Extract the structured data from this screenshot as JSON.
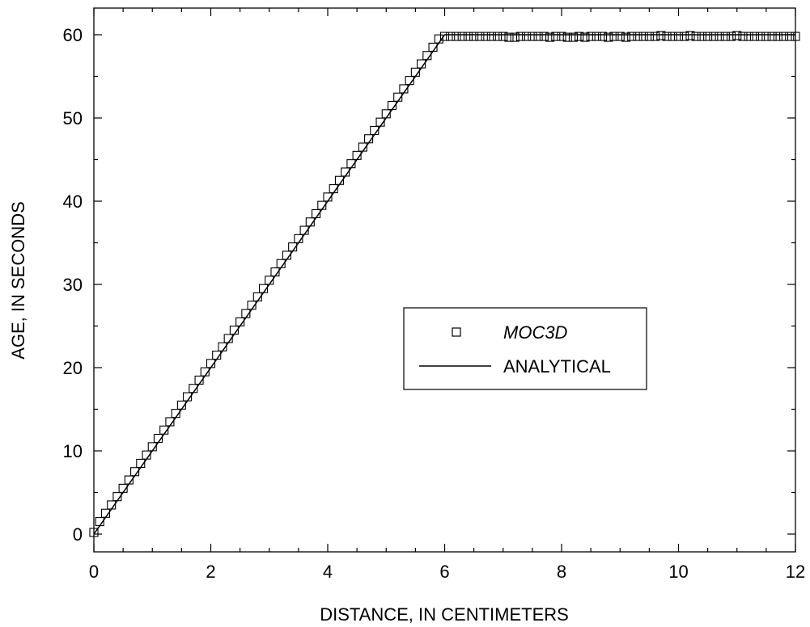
{
  "chart_data": {
    "type": "scatter",
    "xlabel": "DISTANCE, IN CENTIMETERS",
    "ylabel": "AGE, IN SECONDS",
    "xlim": [
      0,
      12
    ],
    "ylim": [
      -2,
      63
    ],
    "x_ticks": [
      0,
      2,
      4,
      6,
      8,
      10,
      12
    ],
    "y_ticks": [
      0,
      10,
      20,
      30,
      40,
      50,
      60
    ],
    "x_minor_step": 0.5,
    "y_minor_step": 5,
    "grid": false,
    "legend_position": "center-right",
    "series": [
      {
        "name": "MOC3D",
        "marker": "open-square",
        "x": [
          0.0,
          0.1,
          0.2,
          0.3,
          0.4,
          0.5,
          0.6,
          0.7,
          0.8,
          0.9,
          1.0,
          1.1,
          1.2,
          1.3,
          1.4,
          1.5,
          1.6,
          1.7,
          1.8,
          1.9,
          2.0,
          2.1,
          2.2,
          2.3,
          2.4,
          2.5,
          2.6,
          2.7,
          2.8,
          2.9,
          3.0,
          3.1,
          3.2,
          3.3,
          3.4,
          3.5,
          3.6,
          3.7,
          3.8,
          3.9,
          4.0,
          4.1,
          4.2,
          4.3,
          4.4,
          4.5,
          4.6,
          4.7,
          4.8,
          4.9,
          5.0,
          5.1,
          5.2,
          5.3,
          5.4,
          5.5,
          5.6,
          5.7,
          5.8,
          5.9,
          6.0,
          6.1,
          6.2,
          6.3,
          6.4,
          6.5,
          6.6,
          6.7,
          6.8,
          6.9,
          7.0,
          7.1,
          7.2,
          7.3,
          7.4,
          7.5,
          7.6,
          7.7,
          7.8,
          7.9,
          8.0,
          8.1,
          8.2,
          8.3,
          8.4,
          8.5,
          8.6,
          8.7,
          8.8,
          8.9,
          9.0,
          9.1,
          9.2,
          9.3,
          9.4,
          9.5,
          9.6,
          9.7,
          9.8,
          9.9,
          10.0,
          10.1,
          10.2,
          10.3,
          10.4,
          10.5,
          10.6,
          10.7,
          10.8,
          10.9,
          11.0,
          11.1,
          11.2,
          11.3,
          11.4,
          11.5,
          11.6,
          11.7,
          11.8,
          11.9,
          12.0
        ],
        "y": [
          0.2,
          1.5,
          2.5,
          3.5,
          4.5,
          5.5,
          6.5,
          7.5,
          8.5,
          9.5,
          10.5,
          11.5,
          12.5,
          13.5,
          14.5,
          15.5,
          16.5,
          17.5,
          18.5,
          19.5,
          20.5,
          21.5,
          22.5,
          23.5,
          24.5,
          25.5,
          26.5,
          27.5,
          28.5,
          29.5,
          30.5,
          31.5,
          32.5,
          33.5,
          34.5,
          35.5,
          36.5,
          37.5,
          38.5,
          39.5,
          40.5,
          41.5,
          42.5,
          43.5,
          44.5,
          45.5,
          46.5,
          47.5,
          48.5,
          49.5,
          50.5,
          51.5,
          52.5,
          53.5,
          54.5,
          55.5,
          56.5,
          57.5,
          58.5,
          59.5,
          59.8,
          59.8,
          59.8,
          59.8,
          59.8,
          59.8,
          59.8,
          59.8,
          59.8,
          59.8,
          59.8,
          59.7,
          59.7,
          59.8,
          59.8,
          59.8,
          59.8,
          59.8,
          59.7,
          59.8,
          59.8,
          59.7,
          59.7,
          59.8,
          59.7,
          59.8,
          59.8,
          59.8,
          59.7,
          59.8,
          59.8,
          59.7,
          59.8,
          59.8,
          59.8,
          59.8,
          59.8,
          59.9,
          59.8,
          59.8,
          59.8,
          59.8,
          59.9,
          59.8,
          59.8,
          59.8,
          59.8,
          59.8,
          59.8,
          59.8,
          59.9,
          59.8,
          59.8,
          59.8,
          59.8,
          59.8,
          59.8,
          59.8,
          59.8,
          59.8,
          59.8
        ]
      },
      {
        "name": "ANALYTICAL",
        "line": "solid",
        "x": [
          0,
          6,
          12
        ],
        "y": [
          0,
          60,
          60
        ]
      }
    ]
  }
}
